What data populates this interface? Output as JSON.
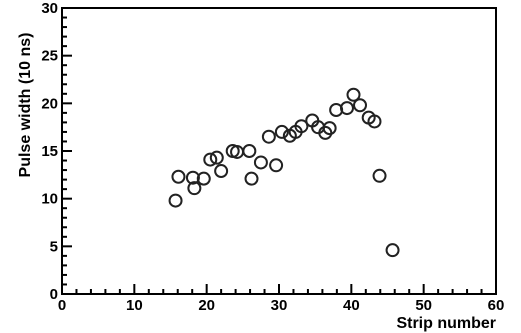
{
  "chart_data": {
    "type": "scatter",
    "title": "",
    "xlabel": "Strip number",
    "ylabel": "Pulse width (10 ns)",
    "xlim": [
      0,
      60
    ],
    "ylim": [
      0,
      30
    ],
    "x_major_ticks": [
      0,
      10,
      20,
      30,
      40,
      50,
      60
    ],
    "y_major_ticks": [
      0,
      5,
      10,
      15,
      20,
      25,
      30
    ],
    "x_tick_labels": [
      "0",
      "10",
      "20",
      "30",
      "40",
      "50",
      "60"
    ],
    "y_tick_labels": [
      "0",
      "5",
      "10",
      "15",
      "20",
      "25",
      "30"
    ],
    "grid": false,
    "marker": "open-circle",
    "marker_color": "#222222",
    "series": [
      {
        "x": [
          15.7,
          16.1,
          18.1,
          18.3,
          19.6,
          20.5,
          21.4,
          22.0,
          23.6,
          24.2,
          25.9,
          26.2,
          27.5,
          28.6,
          29.6,
          30.4,
          31.5,
          32.3,
          33.1,
          34.6,
          35.4,
          36.4,
          37.0,
          37.9,
          39.4,
          40.3,
          41.2,
          42.4,
          43.2,
          43.9,
          45.7
        ],
        "y": [
          9.8,
          12.3,
          12.2,
          11.1,
          12.1,
          14.1,
          14.3,
          12.9,
          15.0,
          14.9,
          15.0,
          12.1,
          13.8,
          16.5,
          13.5,
          17.0,
          16.6,
          17.0,
          17.6,
          18.2,
          17.5,
          16.9,
          17.4,
          19.3,
          19.5,
          20.9,
          19.8,
          18.5,
          18.1,
          12.4,
          4.6
        ]
      }
    ]
  }
}
